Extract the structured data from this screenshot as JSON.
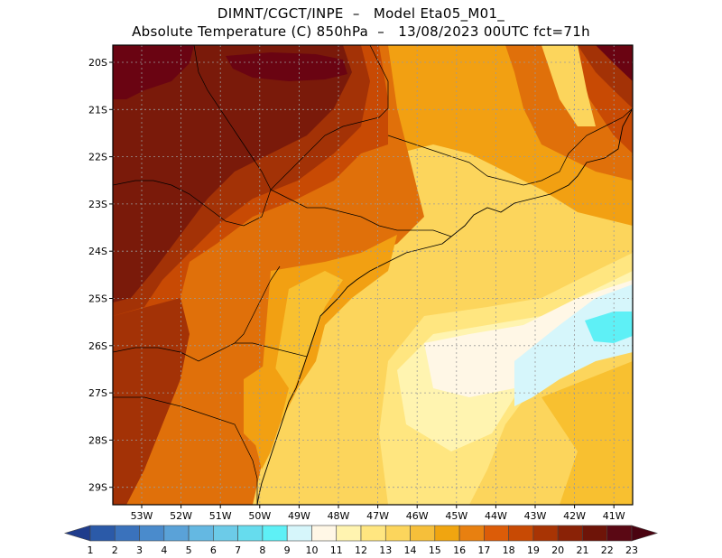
{
  "header": {
    "line1": "DIMNT/CGCT/INPE  –   Model Eta05_M01_",
    "line2": "Absolute Temperature (C) 850hPa  –   13/08/2023 00UTC fct=71h"
  },
  "axes": {
    "lat_labels": [
      "20S",
      "21S",
      "22S",
      "23S",
      "24S",
      "25S",
      "26S",
      "27S",
      "28S",
      "29S"
    ],
    "lon_labels": [
      "53W",
      "52W",
      "51W",
      "50W",
      "49W",
      "48W",
      "47W",
      "46W",
      "45W",
      "44W",
      "43W",
      "42W",
      "41W"
    ]
  },
  "colorbar": {
    "labels": [
      "1",
      "2",
      "3",
      "4",
      "5",
      "6",
      "7",
      "8",
      "9",
      "10",
      "11",
      "12",
      "13",
      "14",
      "15",
      "16",
      "17",
      "18",
      "19",
      "20",
      "21",
      "22",
      "23"
    ],
    "colors": [
      "#1f3c8c",
      "#2b5aa8",
      "#3a72bc",
      "#4a8bcc",
      "#5aa2d8",
      "#64b8e2",
      "#6ccbe8",
      "#66dcee",
      "#5ef0f6",
      "#d6f6fb",
      "#fff7e6",
      "#fff4b0",
      "#ffe680",
      "#fcd55c",
      "#f6bf3a",
      "#f0a510",
      "#e88010",
      "#dc5c08",
      "#c84a04",
      "#a83404",
      "#8a2206",
      "#6e1408",
      "#5a0814",
      "#4a0310"
    ],
    "zones": [
      {
        "name": "hot-west",
        "color": "#7a1a0a"
      },
      {
        "name": "deep-maroon",
        "color": "#6a0412"
      },
      {
        "name": "band-21",
        "color": "#a33206"
      },
      {
        "name": "band-20",
        "color": "#c84a04"
      },
      {
        "name": "band-19",
        "color": "#e0700a"
      },
      {
        "name": "band-18",
        "color": "#f2a012"
      },
      {
        "name": "band-17",
        "color": "#f8c030"
      },
      {
        "name": "band-16",
        "color": "#fcd55c"
      },
      {
        "name": "band-15",
        "color": "#ffe680"
      },
      {
        "name": "band-14",
        "color": "#fff4b0"
      },
      {
        "name": "band-13",
        "color": "#fff7e6"
      },
      {
        "name": "cool-lightblue",
        "color": "#d6f6fb"
      },
      {
        "name": "cool-cyan",
        "color": "#5ef0f6"
      }
    ]
  }
}
